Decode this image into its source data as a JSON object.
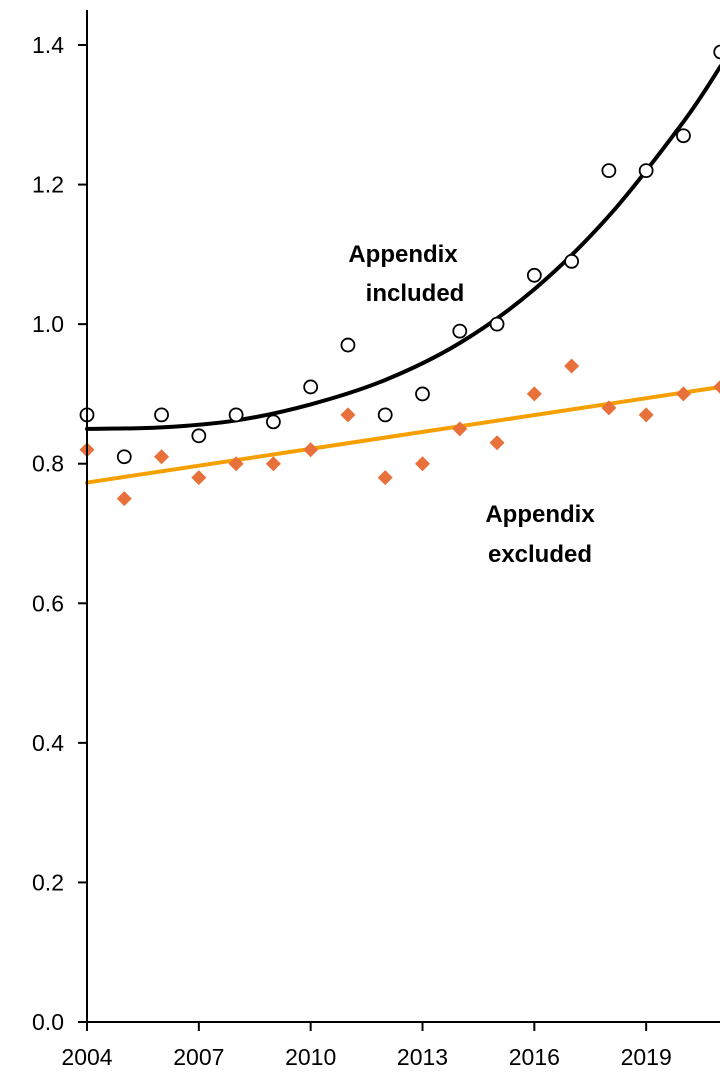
{
  "chart_data": {
    "type": "scatter",
    "title": "",
    "xlabel": "",
    "ylabel": "",
    "xlim": [
      2004,
      2021
    ],
    "ylim": [
      0.0,
      1.45
    ],
    "x_ticks": [
      2004,
      2007,
      2010,
      2013,
      2016,
      2019
    ],
    "x_tick_labels": [
      "2004",
      "2007",
      "2010",
      "2013",
      "2016",
      "2019"
    ],
    "y_ticks": [
      0.0,
      0.2,
      0.4,
      0.6,
      0.8,
      1.0,
      1.2,
      1.4
    ],
    "y_tick_labels": [
      "0.0",
      "0.2",
      "0.4",
      "0.6",
      "0.8",
      "1.0",
      "1.2",
      "1.4"
    ],
    "grid": false,
    "legend": "none",
    "series": [
      {
        "name": "Appendix included",
        "marker": "open-circle",
        "color": "#000000",
        "x": [
          2004,
          2005,
          2006,
          2007,
          2008,
          2009,
          2010,
          2011,
          2012,
          2013,
          2014,
          2015,
          2016,
          2017,
          2018,
          2019,
          2020,
          2021
        ],
        "y": [
          0.87,
          0.81,
          0.87,
          0.84,
          0.87,
          0.86,
          0.91,
          0.97,
          0.87,
          0.9,
          0.99,
          1.0,
          1.07,
          1.09,
          1.22,
          1.22,
          1.27,
          1.39
        ],
        "trend": {
          "type": "polynomial",
          "color": "#000000",
          "x": [
            2004,
            2006,
            2008,
            2010,
            2012,
            2014,
            2016,
            2018,
            2020,
            2021
          ],
          "y": [
            0.85,
            0.852,
            0.862,
            0.885,
            0.92,
            0.973,
            1.05,
            1.155,
            1.29,
            1.37
          ]
        }
      },
      {
        "name": "Appendix excluded",
        "marker": "diamond",
        "color": "#E8703A",
        "x": [
          2004,
          2005,
          2006,
          2007,
          2008,
          2009,
          2010,
          2011,
          2012,
          2013,
          2014,
          2015,
          2016,
          2017,
          2018,
          2019,
          2020,
          2021
        ],
        "y": [
          0.82,
          0.75,
          0.81,
          0.78,
          0.8,
          0.8,
          0.82,
          0.87,
          0.78,
          0.8,
          0.85,
          0.83,
          0.9,
          0.94,
          0.88,
          0.87,
          0.9,
          0.91
        ],
        "trend": {
          "type": "linear",
          "color": "#F5A000",
          "x": [
            2004,
            2021
          ],
          "y": [
            0.773,
            0.91
          ]
        }
      }
    ],
    "annotations": [
      {
        "lines": [
          "Appendix",
          "included"
        ]
      },
      {
        "lines": [
          "Appendix",
          "excluded"
        ]
      }
    ]
  }
}
